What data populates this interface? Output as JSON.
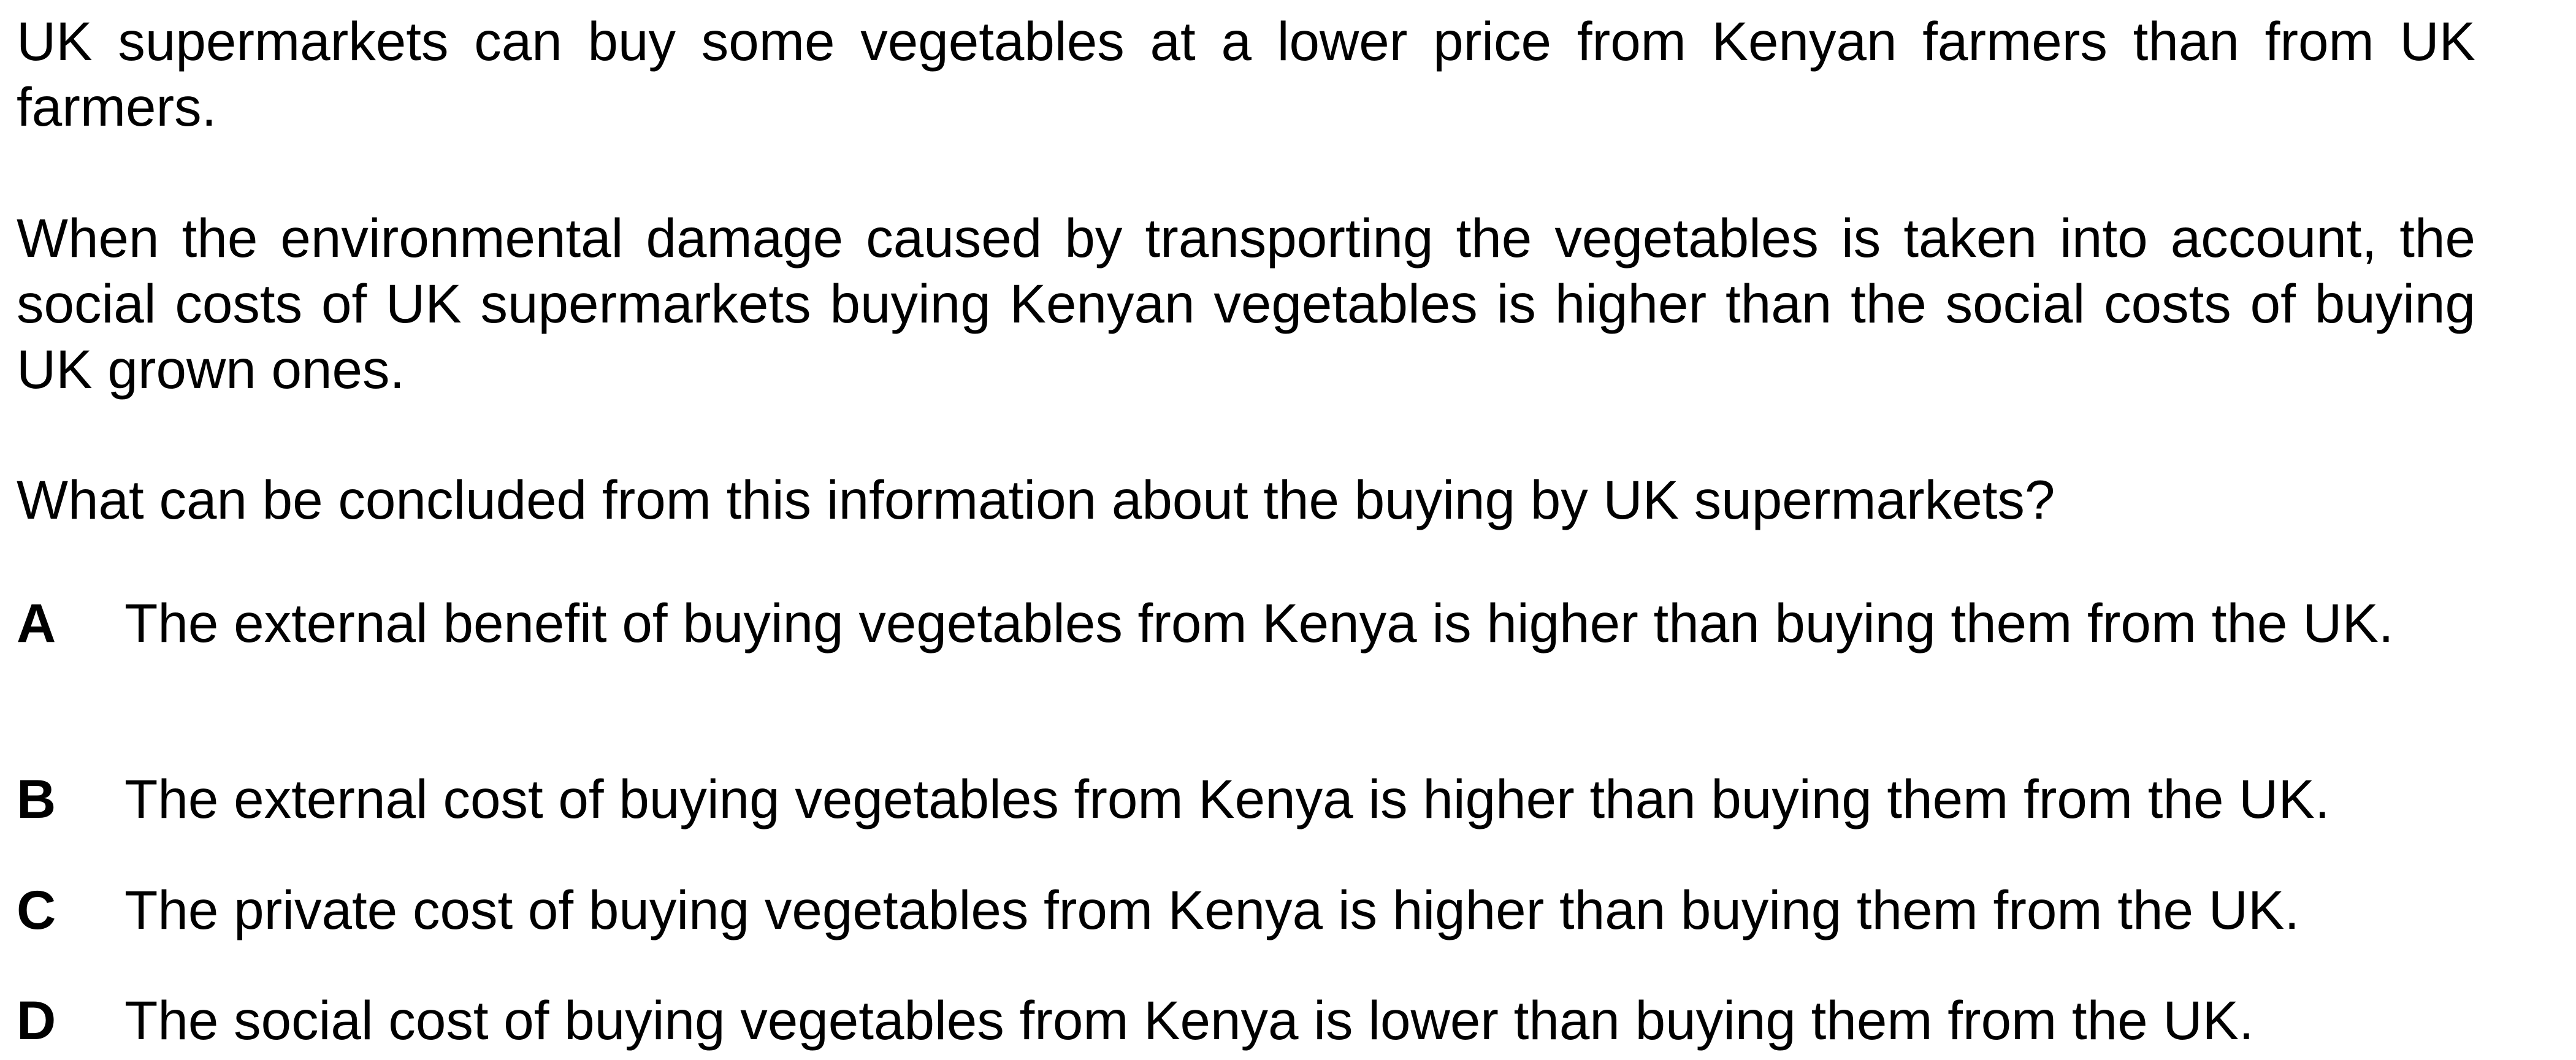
{
  "intro": {
    "paragraph_1": "UK supermarkets can buy some vegetables at a lower price from Kenyan farmers than from UK farmers.",
    "paragraph_2": "When the environmental damage caused by transporting the vegetables is taken into account, the social costs of UK supermarkets buying Kenyan vegetables is higher than the social costs of buying UK grown ones."
  },
  "question": "What can be concluded from this information about the buying by UK supermarkets?",
  "options": [
    {
      "letter": "A",
      "text": "The external benefit of buying vegetables from Kenya is higher than buying them from the UK."
    },
    {
      "letter": "B",
      "text": "The external cost of buying vegetables from Kenya is higher than buying them from the UK."
    },
    {
      "letter": "C",
      "text": "The private cost of buying vegetables from Kenya is higher than buying them from the UK."
    },
    {
      "letter": "D",
      "text": "The social cost of buying vegetables from Kenya is lower than buying them from the UK."
    }
  ]
}
